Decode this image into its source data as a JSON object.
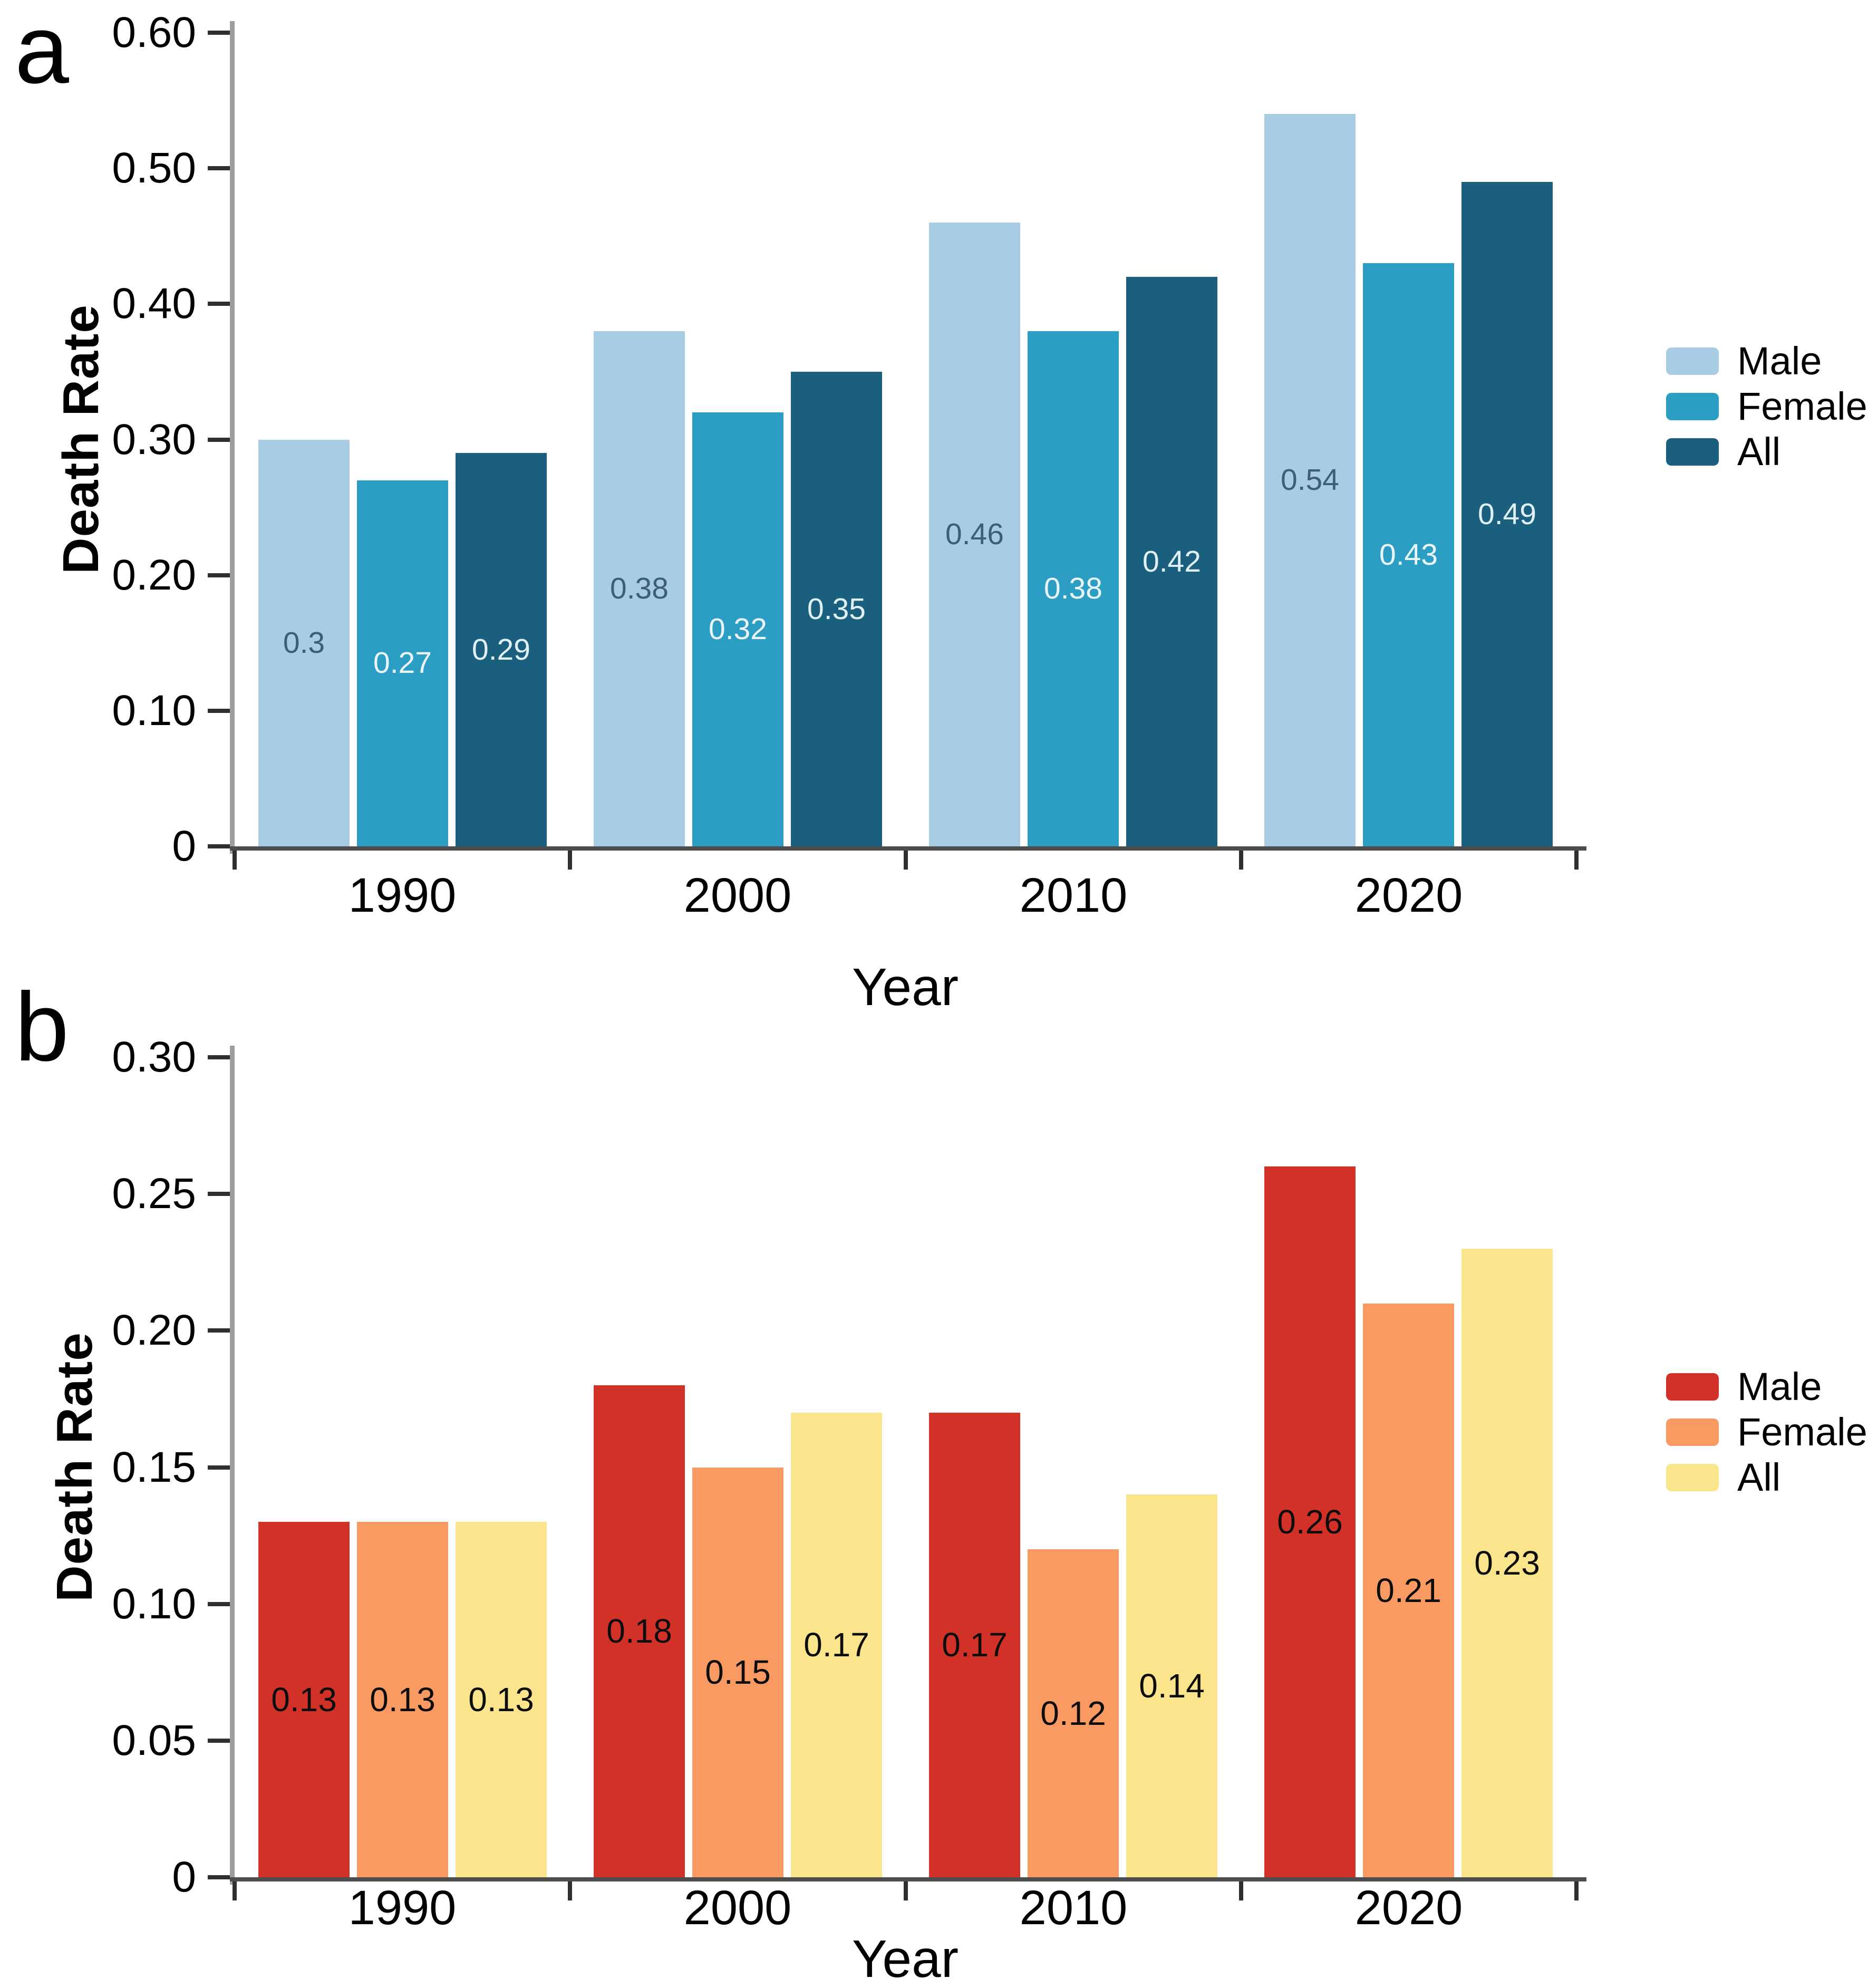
{
  "figure": {
    "background": "#ffffff",
    "panels": [
      "a",
      "b"
    ]
  },
  "chart_data": [
    {
      "type": "bar",
      "panel": "a",
      "title": "",
      "xlabel": "Year",
      "ylabel": "Death Rate",
      "categories": [
        "1990",
        "2000",
        "2010",
        "2020"
      ],
      "series": [
        {
          "name": "Male",
          "color": "#A8CCE4",
          "label_color": "#3E5E73",
          "values": [
            0.3,
            0.38,
            0.46,
            0.54
          ],
          "value_labels": [
            "0.3",
            "0.38",
            "0.46",
            "0.54"
          ]
        },
        {
          "name": "Female",
          "color": "#2C9EC3",
          "label_color": "#EAF5F9",
          "values": [
            0.27,
            0.32,
            0.38,
            0.43
          ],
          "value_labels": [
            "0.27",
            "0.32",
            "0.38",
            "0.43"
          ]
        },
        {
          "name": "All",
          "color": "#1A5F7E",
          "label_color": "#DFF0F6",
          "values": [
            0.29,
            0.35,
            0.42,
            0.49
          ],
          "value_labels": [
            "0.29",
            "0.35",
            "0.42",
            "0.49"
          ]
        }
      ],
      "ylim": [
        0,
        0.6
      ],
      "y_ticks": [
        "0.60",
        "0.50",
        "0.40",
        "0.30",
        "0.20",
        "0.10",
        "0"
      ],
      "legend": {
        "position": "right",
        "entries": [
          "Male",
          "Female",
          "All"
        ]
      },
      "grid": false
    },
    {
      "type": "bar",
      "panel": "b",
      "title": "",
      "xlabel": "Year",
      "ylabel": "Death Rate",
      "categories": [
        "1990",
        "2000",
        "2010",
        "2020"
      ],
      "series": [
        {
          "name": "Male",
          "color": "#D23128",
          "label_color": "#0d0d0d",
          "values": [
            0.13,
            0.18,
            0.17,
            0.26
          ],
          "value_labels": [
            "0.13",
            "0.18",
            "0.17",
            "0.26"
          ]
        },
        {
          "name": "Female",
          "color": "#F89A62",
          "label_color": "#0d0d0d",
          "values": [
            0.13,
            0.15,
            0.12,
            0.21
          ],
          "value_labels": [
            "0.13",
            "0.15",
            "0.12",
            "0.21"
          ]
        },
        {
          "name": "All",
          "color": "#FAE58C",
          "label_color": "#0d0d0d",
          "values": [
            0.13,
            0.17,
            0.14,
            0.23
          ],
          "value_labels": [
            "0.13",
            "0.17",
            "0.14",
            "0.23"
          ]
        }
      ],
      "ylim": [
        0,
        0.3
      ],
      "y_ticks": [
        "0.30",
        "0.25",
        "0.20",
        "0.15",
        "0.10",
        "0.05",
        "0"
      ],
      "legend": {
        "position": "right",
        "entries": [
          "Male",
          "Female",
          "All"
        ]
      },
      "grid": false
    }
  ]
}
